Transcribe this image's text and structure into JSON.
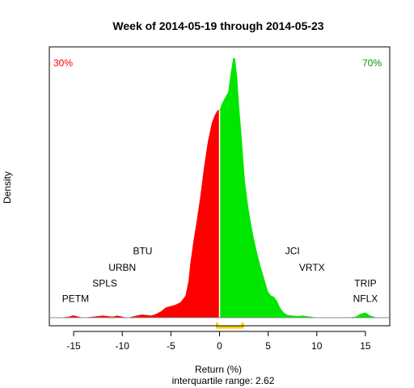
{
  "chart_data": {
    "type": "area",
    "title": "Week of 2014-05-19 through 2014-05-23",
    "xlabel": "Return (%)",
    "ylabel": "Density",
    "subtitle": "interquartile range: 2.62",
    "xlim": [
      -17.5,
      17.5
    ],
    "ylim": [
      0,
      1
    ],
    "xticks": [
      -15,
      -10,
      -5,
      0,
      5,
      10,
      15
    ],
    "negative_share_label": "30%",
    "positive_share_label": "70%",
    "colors": {
      "negative": "#ff0000",
      "positive": "#00e600",
      "divider": "#ffffff",
      "iqr_bracket": "#ffcc00",
      "negative_label": "#ff0000",
      "positive_label": "#009900"
    },
    "iqr_range": [
      -0.25,
      2.37
    ],
    "density": {
      "x": [
        -16.5,
        -15.5,
        -15.0,
        -14.5,
        -14.0,
        -13.0,
        -12.0,
        -11.0,
        -10.5,
        -10.0,
        -9.5,
        -9.0,
        -8.0,
        -7.0,
        -6.5,
        -6.0,
        -5.5,
        -5.0,
        -4.5,
        -4.0,
        -3.5,
        -3.2,
        -3.0,
        -2.7,
        -2.4,
        -2.0,
        -1.6,
        -1.2,
        -0.8,
        -0.5,
        -0.2,
        0.0,
        0.0,
        0.3,
        0.6,
        0.9,
        1.1,
        1.4,
        1.6,
        1.8,
        2.0,
        2.2,
        2.4,
        2.6,
        2.9,
        3.2,
        3.5,
        3.8,
        4.2,
        4.6,
        5.0,
        5.3,
        5.6,
        5.9,
        6.2,
        6.6,
        7.0,
        7.5,
        8.0,
        8.5,
        9.0,
        10.0,
        11.0,
        12.0,
        13.0,
        14.0,
        14.5,
        15.0,
        15.5,
        16.0,
        17.0
      ],
      "y": [
        0.0,
        0.004,
        0.009,
        0.004,
        0.0,
        0.004,
        0.008,
        0.004,
        0.008,
        0.004,
        0.0,
        0.004,
        0.012,
        0.008,
        0.015,
        0.025,
        0.04,
        0.045,
        0.05,
        0.06,
        0.085,
        0.14,
        0.21,
        0.29,
        0.36,
        0.46,
        0.58,
        0.68,
        0.75,
        0.78,
        0.8,
        0.8,
        0.8,
        0.83,
        0.85,
        0.87,
        0.93,
        1.0,
        1.0,
        0.93,
        0.82,
        0.73,
        0.63,
        0.53,
        0.44,
        0.37,
        0.31,
        0.26,
        0.2,
        0.15,
        0.1,
        0.085,
        0.08,
        0.065,
        0.04,
        0.02,
        0.01,
        0.008,
        0.006,
        0.008,
        0.006,
        0.0,
        0.0,
        0.0,
        0.0,
        0.004,
        0.015,
        0.02,
        0.008,
        0.002,
        0.0
      ]
    },
    "annotations": [
      {
        "text": "PETM",
        "x": -14.8,
        "y": 0.06
      },
      {
        "text": "SPLS",
        "x": -11.8,
        "y": 0.12
      },
      {
        "text": "URBN",
        "x": -10.0,
        "y": 0.18
      },
      {
        "text": "BTU",
        "x": -7.9,
        "y": 0.245
      },
      {
        "text": "JCI",
        "x": 7.5,
        "y": 0.245
      },
      {
        "text": "VRTX",
        "x": 9.5,
        "y": 0.18
      },
      {
        "text": "TRIP",
        "x": 15.0,
        "y": 0.12
      },
      {
        "text": "NFLX",
        "x": 15.0,
        "y": 0.06
      }
    ]
  }
}
